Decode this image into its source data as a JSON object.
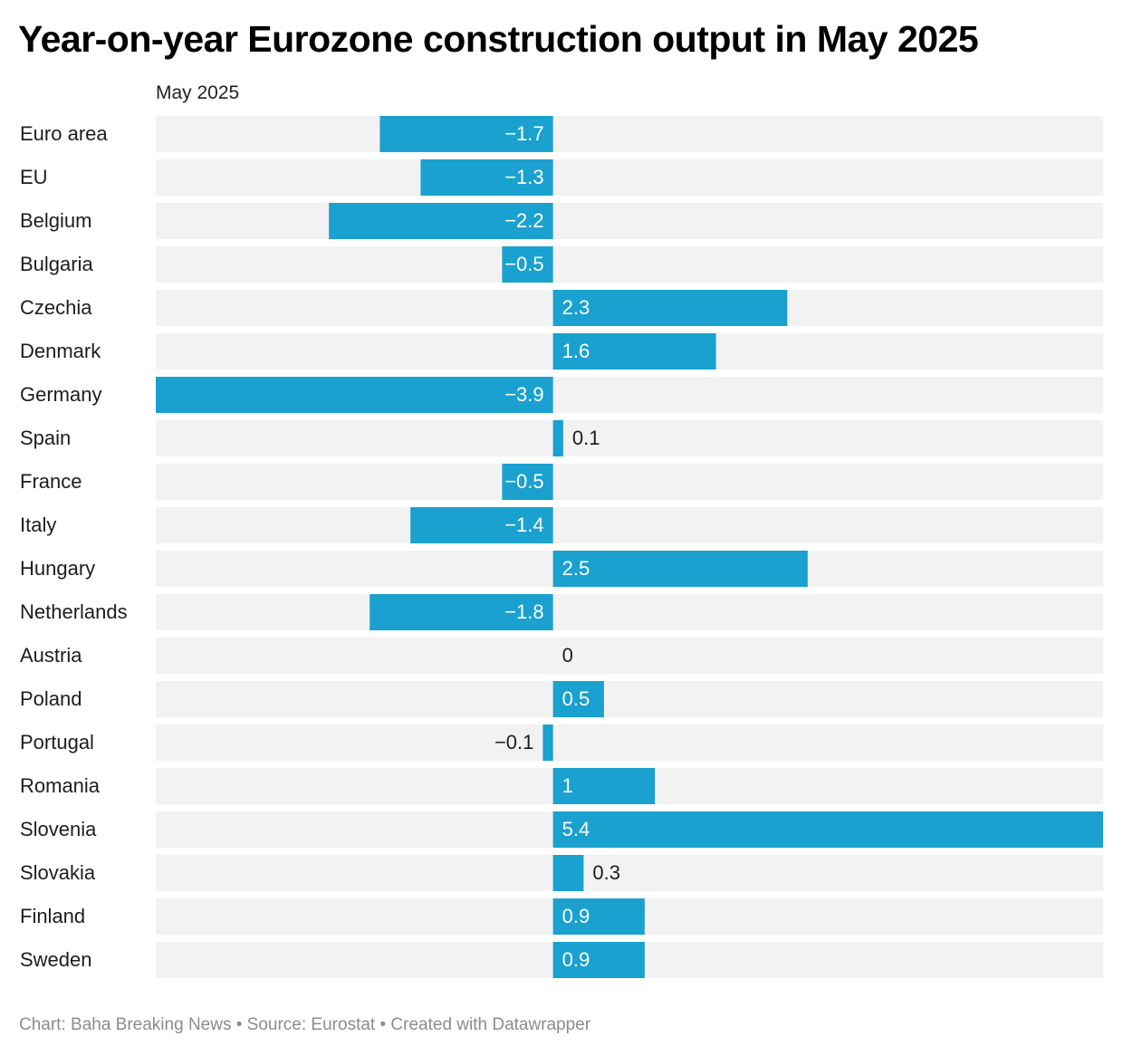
{
  "title": "Year-on-year Eurozone construction output in May 2025",
  "column_header": "May 2025",
  "footer": {
    "chart_credit": "Chart: Baha Breaking News",
    "source": "Source: Eurostat",
    "created_with": "Created with Datawrapper",
    "separator": "•"
  },
  "colors": {
    "bar": "#1aa1cf",
    "row_background": "#f2f2f2",
    "label_inside": "#ffffff",
    "label_outside": "#1d1d1d"
  },
  "chart_data": {
    "type": "bar",
    "orientation": "horizontal",
    "categories": [
      "Euro area",
      "EU",
      "Belgium",
      "Bulgaria",
      "Czechia",
      "Denmark",
      "Germany",
      "Spain",
      "France",
      "Italy",
      "Hungary",
      "Netherlands",
      "Austria",
      "Poland",
      "Portugal",
      "Romania",
      "Slovenia",
      "Slovakia",
      "Finland",
      "Sweden"
    ],
    "series": [
      {
        "name": "May 2025",
        "values": [
          -1.7,
          -1.3,
          -2.2,
          -0.5,
          2.3,
          1.6,
          -3.9,
          0.1,
          -0.5,
          -1.4,
          2.5,
          -1.8,
          0,
          0.5,
          -0.1,
          1,
          5.4,
          0.3,
          0.9,
          0.9
        ],
        "labels": [
          "−1.7",
          "−1.3",
          "−2.2",
          "−0.5",
          "2.3",
          "1.6",
          "−3.9",
          "0.1",
          "−0.5",
          "−1.4",
          "2.5",
          "−1.8",
          "0",
          "0.5",
          "−0.1",
          "1",
          "5.4",
          "0.3",
          "0.9",
          "0.9"
        ]
      }
    ],
    "xlim": [
      -3.9,
      5.4
    ],
    "grid": false,
    "legend": "none"
  }
}
